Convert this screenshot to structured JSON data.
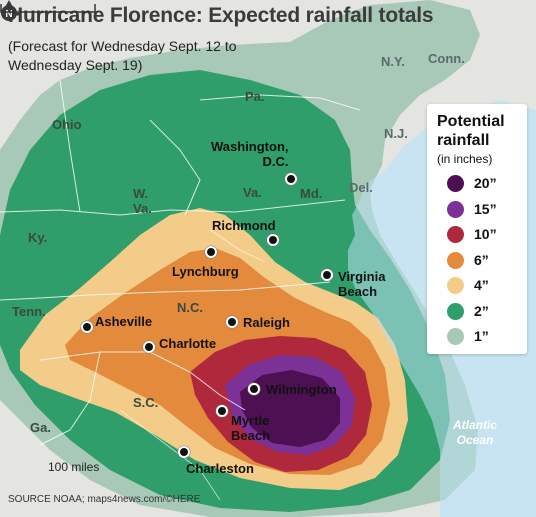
{
  "title": "Hurricane Florence: Expected rainfall totals",
  "subtitle": "(Forecast for Wednesday Sept. 12 to Wednesday Sept. 19)",
  "legend": {
    "title": "Potential rainfall",
    "unit": "(in inches)",
    "items": [
      {
        "label": "20”",
        "color": "#4c1053"
      },
      {
        "label": "15”",
        "color": "#7b3196"
      },
      {
        "label": "10”",
        "color": "#b0283c"
      },
      {
        "label": "6”",
        "color": "#e48a3c"
      },
      {
        "label": "4”",
        "color": "#f3cc8a"
      },
      {
        "label": "2”",
        "color": "#2f9e6a"
      },
      {
        "label": "1”",
        "color": "#a8c9b8"
      }
    ]
  },
  "states": {
    "ny": "N.Y.",
    "conn": "Conn.",
    "pa": "Pa.",
    "ohio": "Ohio",
    "nj": "N.J.",
    "md": "Md.",
    "del": "Del.",
    "wva": "W.\nVa.",
    "va": "Va.",
    "ky": "Ky.",
    "tenn": "Tenn.",
    "nc": "N.C.",
    "sc": "S.C.",
    "ga": "Ga."
  },
  "cities": {
    "washington": "Washington,\nD.C.",
    "richmond": "Richmond",
    "lynchburg": "Lynchburg",
    "virginia_beach": "Virginia\nBeach",
    "asheville": "Asheville",
    "raleigh": "Raleigh",
    "charlotte": "Charlotte",
    "wilmington": "Wilmington",
    "myrtle_beach": "Myrtle\nBeach",
    "charleston": "Charleston"
  },
  "ocean": "Atlantic\nOcean",
  "scale": "100 miles",
  "compass": "N",
  "source": "SOURCE NOAA; maps4news.com/©HERE"
}
